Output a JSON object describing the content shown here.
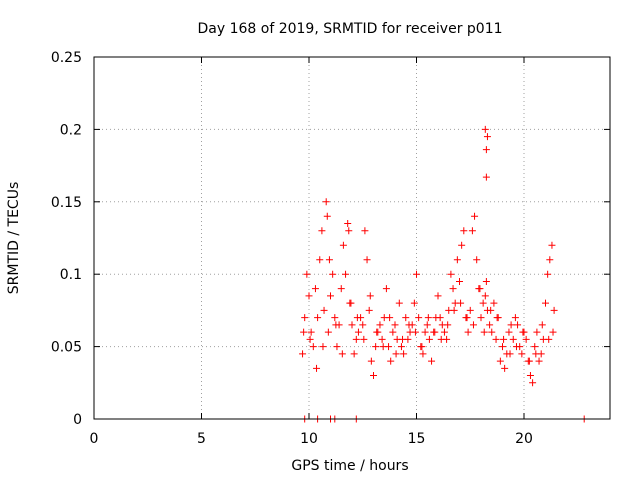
{
  "chart_data": {
    "type": "scatter",
    "title": "Day 168 of 2019, SRMTID for receiver p011",
    "xlabel": "GPS time / hours",
    "ylabel": "SRMTID / TECUs",
    "xlim": [
      0,
      24
    ],
    "ylim": [
      0,
      0.25
    ],
    "xticks": [
      0,
      5,
      10,
      15,
      20
    ],
    "xtick_labels": [
      "0",
      "5",
      "10",
      "15",
      "20"
    ],
    "yticks": [
      0,
      0.05,
      0.1,
      0.15,
      0.2,
      0.25
    ],
    "ytick_labels": [
      "0",
      "0.05",
      "0.1",
      "0.15",
      "0.2",
      "0.25"
    ],
    "grid": true,
    "marker": "+",
    "color": "#ff0000",
    "series": [
      {
        "name": "SRMTID",
        "x": [
          9.7,
          9.8,
          9.9,
          10.0,
          10.1,
          10.2,
          10.3,
          10.4,
          10.5,
          10.6,
          10.7,
          10.8,
          10.85,
          10.9,
          11.0,
          11.1,
          11.2,
          11.3,
          11.4,
          11.5,
          11.6,
          11.7,
          11.8,
          11.85,
          11.9,
          12.0,
          12.1,
          12.2,
          12.3,
          12.4,
          12.5,
          12.6,
          12.7,
          12.8,
          12.9,
          13.0,
          13.1,
          13.2,
          13.3,
          13.4,
          13.5,
          13.6,
          13.7,
          13.8,
          13.9,
          14.0,
          14.1,
          14.2,
          14.3,
          14.4,
          14.5,
          14.6,
          14.7,
          14.8,
          14.9,
          15.0,
          15.1,
          15.2,
          15.3,
          15.4,
          15.5,
          15.6,
          15.7,
          15.8,
          15.9,
          16.0,
          16.1,
          16.2,
          16.3,
          16.4,
          16.5,
          16.6,
          16.7,
          16.8,
          16.9,
          17.0,
          17.1,
          17.2,
          17.3,
          17.4,
          17.5,
          17.6,
          17.7,
          17.8,
          17.9,
          18.0,
          18.1,
          18.2,
          18.25,
          18.3,
          18.4,
          18.5,
          18.6,
          18.7,
          18.8,
          18.9,
          19.0,
          19.1,
          19.2,
          19.3,
          19.4,
          19.5,
          19.6,
          19.7,
          19.8,
          19.9,
          20.0,
          20.1,
          20.2,
          20.3,
          20.4,
          20.5,
          20.6,
          20.7,
          20.8,
          20.9,
          21.0,
          21.1,
          21.2,
          21.3,
          21.4,
          9.75,
          10.05,
          10.35,
          10.65,
          10.95,
          11.25,
          11.55,
          11.95,
          12.25,
          12.55,
          12.85,
          13.15,
          13.45,
          13.75,
          14.05,
          14.35,
          14.65,
          14.95,
          15.25,
          15.55,
          15.85,
          16.15,
          16.45,
          16.75,
          17.05,
          17.35,
          17.65,
          17.95,
          18.15,
          18.45,
          18.75,
          19.05,
          19.35,
          19.65,
          19.95,
          20.25,
          20.55,
          20.85,
          21.15,
          21.35,
          18.2,
          18.25,
          18.3,
          18.25,
          9.8,
          10.4,
          11.0,
          11.2,
          12.2,
          22.8
        ],
        "y": [
          0.045,
          0.07,
          0.1,
          0.085,
          0.06,
          0.05,
          0.09,
          0.07,
          0.11,
          0.13,
          0.075,
          0.15,
          0.14,
          0.06,
          0.085,
          0.1,
          0.07,
          0.05,
          0.065,
          0.09,
          0.12,
          0.1,
          0.135,
          0.13,
          0.08,
          0.065,
          0.045,
          0.055,
          0.06,
          0.07,
          0.065,
          0.13,
          0.11,
          0.075,
          0.04,
          0.03,
          0.05,
          0.06,
          0.065,
          0.055,
          0.07,
          0.09,
          0.05,
          0.04,
          0.06,
          0.065,
          0.055,
          0.08,
          0.05,
          0.045,
          0.07,
          0.055,
          0.06,
          0.065,
          0.08,
          0.1,
          0.07,
          0.05,
          0.045,
          0.06,
          0.065,
          0.055,
          0.04,
          0.06,
          0.07,
          0.085,
          0.07,
          0.065,
          0.06,
          0.055,
          0.075,
          0.1,
          0.09,
          0.08,
          0.11,
          0.095,
          0.12,
          0.13,
          0.07,
          0.06,
          0.075,
          0.13,
          0.14,
          0.11,
          0.09,
          0.07,
          0.08,
          0.085,
          0.095,
          0.075,
          0.065,
          0.06,
          0.08,
          0.055,
          0.07,
          0.04,
          0.05,
          0.035,
          0.045,
          0.06,
          0.065,
          0.055,
          0.07,
          0.065,
          0.05,
          0.045,
          0.06,
          0.055,
          0.04,
          0.03,
          0.025,
          0.05,
          0.06,
          0.04,
          0.045,
          0.055,
          0.08,
          0.1,
          0.11,
          0.12,
          0.075,
          0.06,
          0.055,
          0.035,
          0.05,
          0.11,
          0.065,
          0.045,
          0.08,
          0.07,
          0.055,
          0.085,
          0.06,
          0.05,
          0.07,
          0.045,
          0.055,
          0.065,
          0.06,
          0.05,
          0.07,
          0.06,
          0.055,
          0.065,
          0.075,
          0.08,
          0.07,
          0.065,
          0.09,
          0.06,
          0.075,
          0.07,
          0.055,
          0.045,
          0.05,
          0.06,
          0.04,
          0.045,
          0.065,
          0.055,
          0.06,
          0.2,
          0.186,
          0.195,
          0.167,
          0.0,
          0.0,
          0.0,
          0.0,
          0.0,
          0.0
        ]
      }
    ]
  }
}
